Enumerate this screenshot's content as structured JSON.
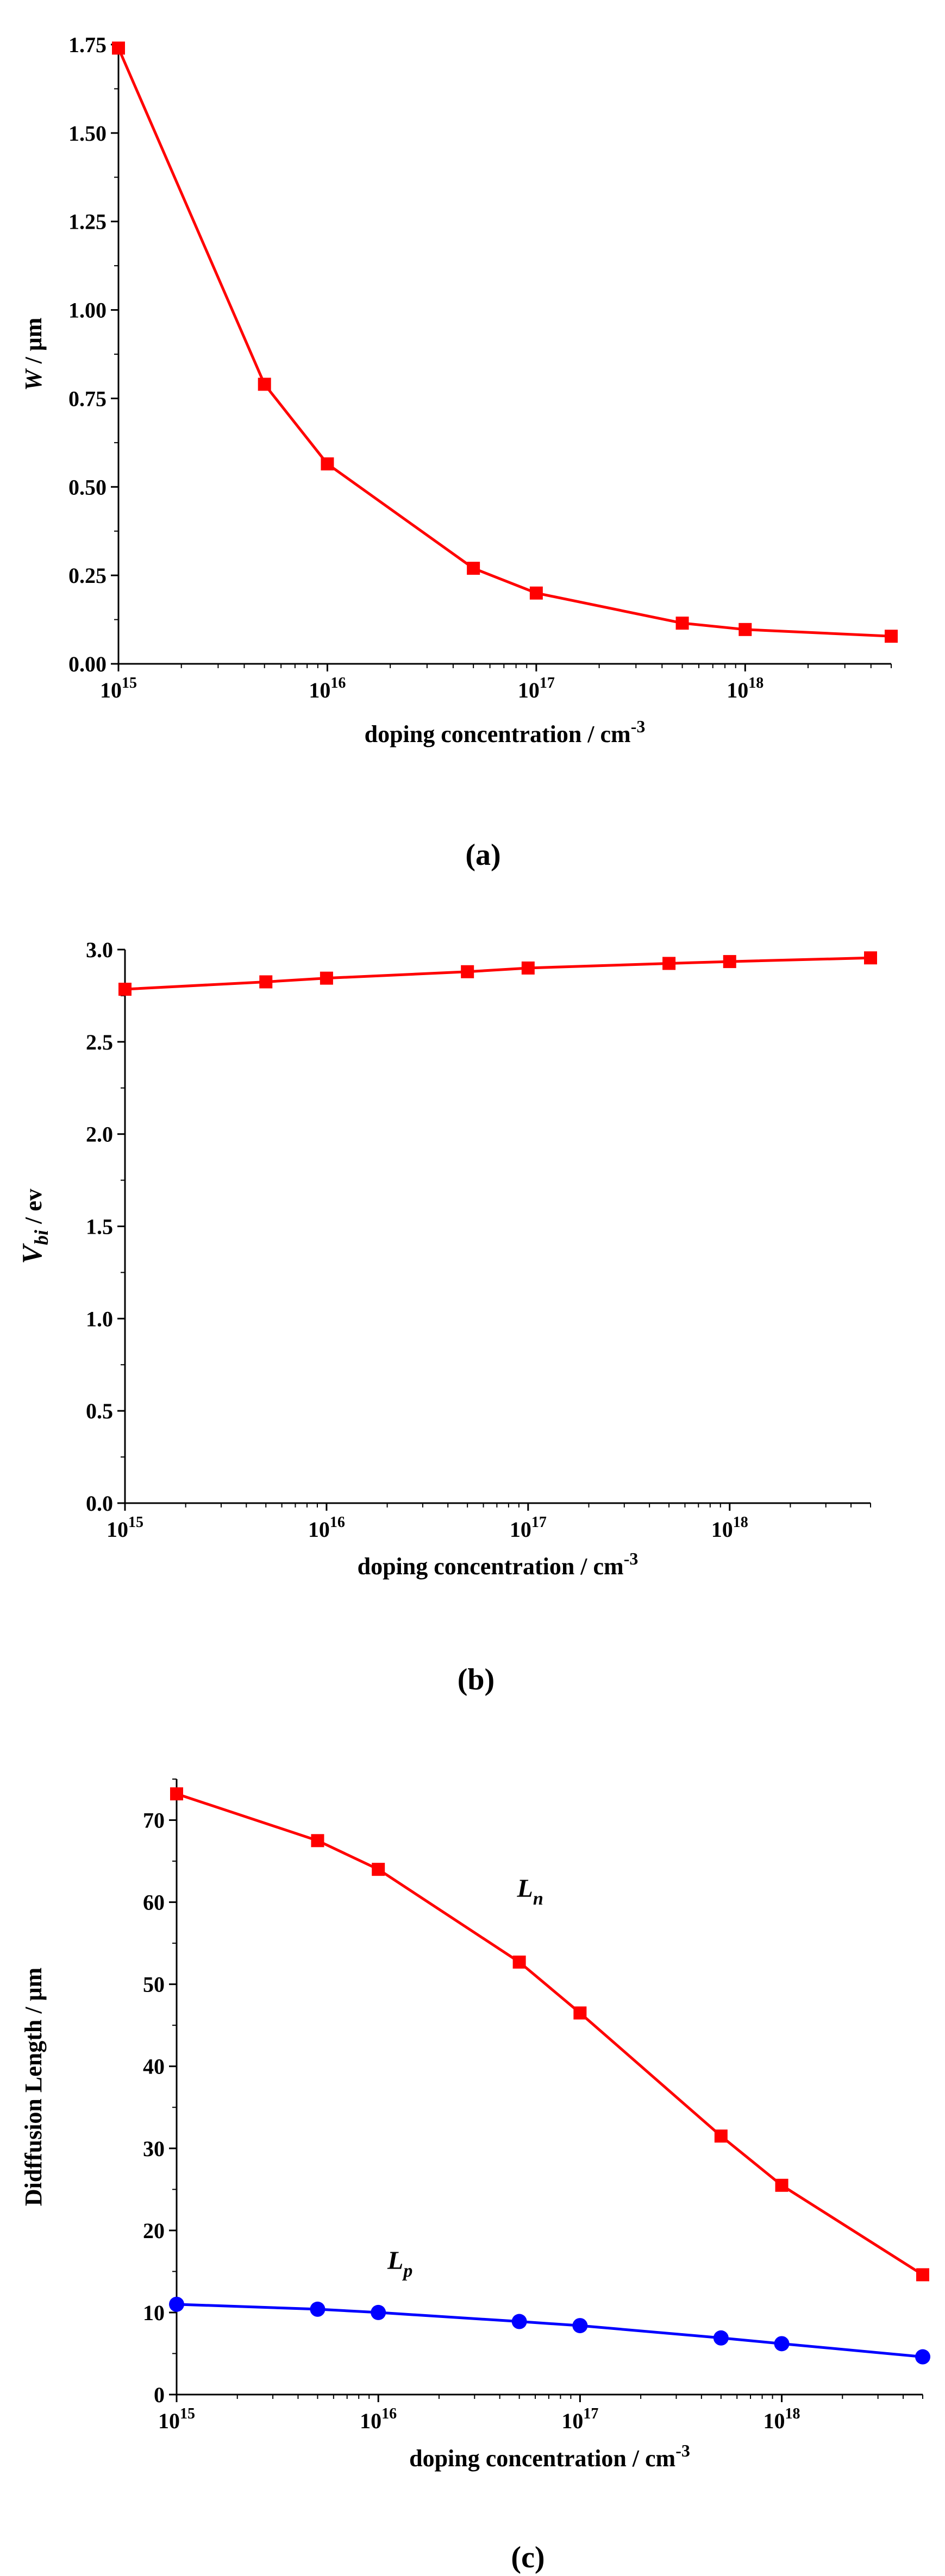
{
  "chart_data": [
    {
      "type": "line",
      "panel_label": "(a)",
      "xlabel": "doping concentration / cm",
      "xlabel_sup": "-3",
      "ylabel_italic": "W",
      "ylabel_rest": " / μm",
      "x_scale": "log",
      "xlim": [
        1000000000000000.0,
        5e+18
      ],
      "ylim": [
        0,
        1.75
      ],
      "x_ticks": [
        1000000000000000.0,
        1e+16,
        1e+17,
        1e+18
      ],
      "x_tick_labels": [
        "15",
        "16",
        "17",
        "18"
      ],
      "y_ticks": [
        0,
        0.25,
        0.5,
        0.75,
        1.0,
        1.25,
        1.5,
        1.75
      ],
      "y_tick_labels": [
        "0.00",
        "0.25",
        "0.50",
        "0.75",
        "1.00",
        "1.25",
        "1.50",
        "1.75"
      ],
      "x": [
        1000000000000000.0,
        5000000000000000.0,
        1e+16,
        5e+16,
        1e+17,
        5e+17,
        1e+18,
        5e+18
      ],
      "series": [
        {
          "values": [
            1.74,
            0.79,
            0.565,
            0.27,
            0.2,
            0.115,
            0.097,
            0.078
          ],
          "color": "#ff0000",
          "marker": "square"
        }
      ]
    },
    {
      "type": "line",
      "panel_label": "(b)",
      "xlabel": "doping concentration / cm",
      "xlabel_sup": "-3",
      "ylabel_main": "V",
      "ylabel_sub": "bi",
      "ylabel_rest": " / ev",
      "x_scale": "log",
      "xlim": [
        1000000000000000.0,
        5e+18
      ],
      "ylim": [
        0,
        3.0
      ],
      "x_ticks": [
        1000000000000000.0,
        1e+16,
        1e+17,
        1e+18
      ],
      "x_tick_labels": [
        "15",
        "16",
        "17",
        "18"
      ],
      "y_ticks": [
        0,
        0.5,
        1.0,
        1.5,
        2.0,
        2.5,
        3.0
      ],
      "y_tick_labels": [
        "0.0",
        "0.5",
        "1.0",
        "1.5",
        "2.0",
        "2.5",
        "3.0"
      ],
      "x": [
        1000000000000000.0,
        5000000000000000.0,
        1e+16,
        5e+16,
        1e+17,
        5e+17,
        1e+18,
        5e+18
      ],
      "series": [
        {
          "values": [
            2.785,
            2.825,
            2.845,
            2.88,
            2.9,
            2.925,
            2.935,
            2.955
          ],
          "color": "#ff0000",
          "marker": "square"
        }
      ]
    },
    {
      "type": "line",
      "panel_label": "(c)",
      "xlabel": "doping concentration / cm",
      "xlabel_sup": "-3",
      "ylabel": "Didffusion Length / μm",
      "x_scale": "log",
      "xlim": [
        1000000000000000.0,
        5e+18
      ],
      "ylim": [
        0,
        75
      ],
      "x_ticks": [
        1000000000000000.0,
        1e+16,
        1e+17,
        1e+18
      ],
      "x_tick_labels": [
        "15",
        "16",
        "17",
        "18"
      ],
      "y_ticks": [
        0,
        10,
        20,
        30,
        40,
        50,
        60,
        70
      ],
      "y_tick_labels": [
        "0",
        "10",
        "20",
        "30",
        "40",
        "50",
        "60",
        "70"
      ],
      "x": [
        1000000000000000.0,
        5000000000000000.0,
        1e+16,
        5e+16,
        1e+17,
        5e+17,
        1e+18,
        5e+18
      ],
      "series": [
        {
          "name": "L",
          "name_sub": "n",
          "values": [
            73.2,
            67.5,
            64.0,
            52.7,
            46.5,
            31.5,
            25.5,
            14.6
          ],
          "color": "#ff0000",
          "marker": "square"
        },
        {
          "name": "L",
          "name_sub": "p",
          "values": [
            11.0,
            10.4,
            10.0,
            8.9,
            8.4,
            6.9,
            6.2,
            4.6
          ],
          "color": "#0000ff",
          "marker": "circle"
        }
      ]
    }
  ]
}
